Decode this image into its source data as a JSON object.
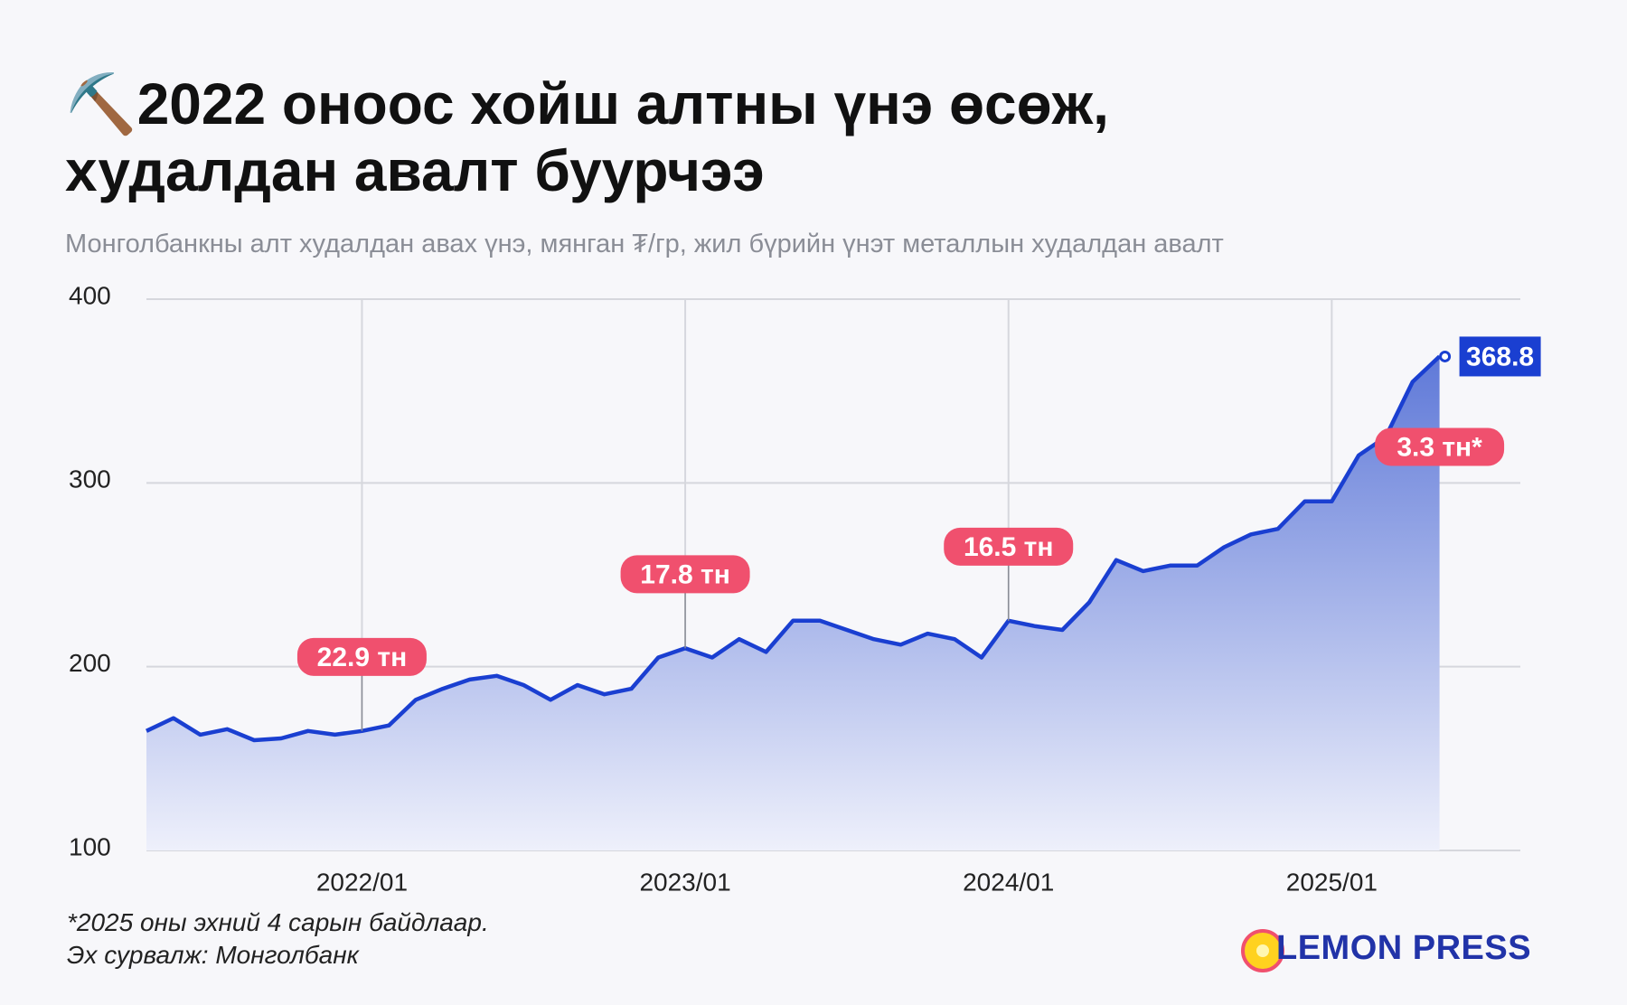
{
  "chart_data": {
    "type": "area",
    "title": "⛏️2022 оноос хойш алтны үнэ өсөж, худалдан авалт буурчээ",
    "subtitle": "Монголбанкны алт худалдан авах үнэ, мянган ₮/гр, жил бүрийн үнэт металлын худалдан авалт",
    "x": [
      "2021/05",
      "2021/06",
      "2021/07",
      "2021/08",
      "2021/09",
      "2021/10",
      "2021/11",
      "2021/12",
      "2022/01",
      "2022/02",
      "2022/03",
      "2022/04",
      "2022/05",
      "2022/06",
      "2022/07",
      "2022/08",
      "2022/09",
      "2022/10",
      "2022/11",
      "2022/12",
      "2023/01",
      "2023/02",
      "2023/03",
      "2023/04",
      "2023/05",
      "2023/06",
      "2023/07",
      "2023/08",
      "2023/09",
      "2023/10",
      "2023/11",
      "2023/12",
      "2024/01",
      "2024/02",
      "2024/03",
      "2024/04",
      "2024/05",
      "2024/06",
      "2024/07",
      "2024/08",
      "2024/09",
      "2024/10",
      "2024/11",
      "2024/12",
      "2025/01",
      "2025/02",
      "2025/03",
      "2025/04",
      "2025/05"
    ],
    "series": [
      {
        "name": "Алтны үнэ",
        "color": "#1a3fd1",
        "values": [
          165,
          172,
          163,
          166,
          160,
          161,
          165,
          163,
          165,
          168,
          182,
          188,
          193,
          195,
          190,
          182,
          190,
          185,
          188,
          205,
          210,
          205,
          215,
          208,
          225,
          225,
          220,
          215,
          212,
          218,
          215,
          205,
          225,
          222,
          220,
          235,
          258,
          252,
          255,
          255,
          265,
          272,
          275,
          290,
          290,
          315,
          325,
          355,
          368.8
        ]
      }
    ],
    "annotations": [
      {
        "x": "2022/01",
        "text": "22.9 тн"
      },
      {
        "x": "2023/01",
        "text": "17.8 тн"
      },
      {
        "x": "2024/01",
        "text": "16.5 тн"
      },
      {
        "x": "2025/05",
        "text": "3.3 тн*"
      }
    ],
    "xlim": [
      "2021/05",
      "2025/08"
    ],
    "xticks": [
      "2022/01",
      "2023/01",
      "2024/01",
      "2025/01"
    ],
    "ylim": [
      100,
      400
    ],
    "yticks": [
      100,
      200,
      300,
      400
    ],
    "grid": true,
    "footnotes": [
      "*2025 оны эхний 4 сарын байдлаар.",
      "Эх сурвалж: Монголбанк"
    ],
    "logo": "LEMON PRESS"
  }
}
